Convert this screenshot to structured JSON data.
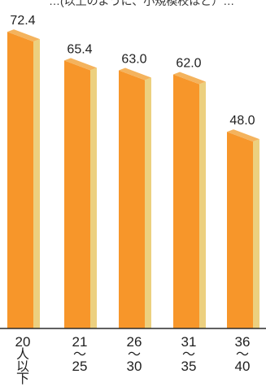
{
  "chart_data": {
    "type": "bar",
    "title": "…(以上のように、小規模校ほど）…",
    "xlabel": "",
    "ylabel": "",
    "ylim": [
      0,
      80
    ],
    "grid": false,
    "legend": "none",
    "categories": [
      {
        "id": "c1",
        "label_lines": [
          "20",
          "人",
          "以",
          "下"
        ]
      },
      {
        "id": "c2",
        "label_lines": [
          "21",
          "〜",
          "25"
        ]
      },
      {
        "id": "c3",
        "label_lines": [
          "26",
          "〜",
          "30"
        ]
      },
      {
        "id": "c4",
        "label_lines": [
          "31",
          "〜",
          "35"
        ]
      },
      {
        "id": "c5",
        "label_lines": [
          "36",
          "〜",
          "40"
        ]
      }
    ],
    "values": [
      72.4,
      65.4,
      63.0,
      62.0,
      48.0
    ],
    "value_labels": [
      "72.4",
      "65.4",
      "63.0",
      "62.0",
      "48.0"
    ],
    "colors": {
      "bar_front": "#f7962a",
      "bar_side": "#ecd07f",
      "bar_top": "#f4b35d",
      "baseline": "#2b2b2b",
      "label_text": "#1f1f1f"
    }
  }
}
